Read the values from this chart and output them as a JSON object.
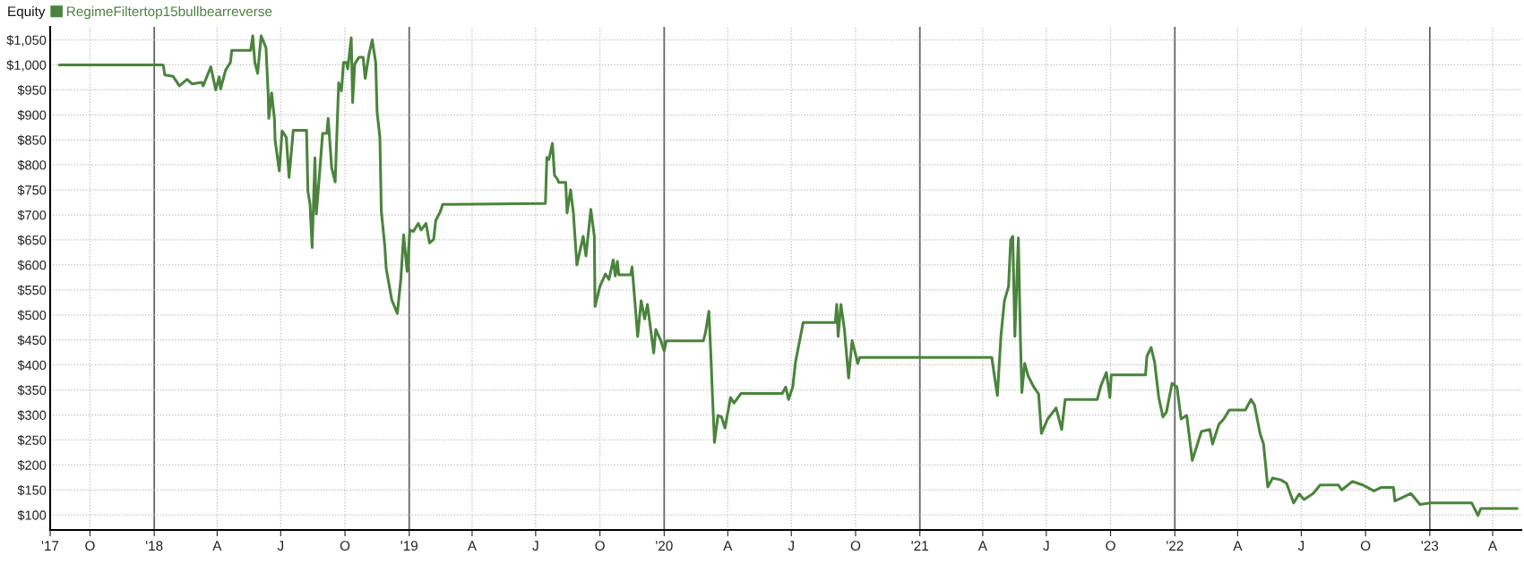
{
  "chart_data": {
    "type": "line",
    "title": "Equity",
    "legend": "top left",
    "grid": true,
    "line_style": "solid",
    "marker": "none",
    "xlim": [
      "2017-08-05",
      "2023-05-12"
    ],
    "xticks": [
      {
        "value": "2017-08-05",
        "label": "'17"
      },
      {
        "value": "2017-10-01",
        "label": "O"
      },
      {
        "value": "2018-01-01",
        "label": "'18"
      },
      {
        "value": "2018-04-01",
        "label": "A"
      },
      {
        "value": "2018-07-01",
        "label": "J"
      },
      {
        "value": "2018-10-01",
        "label": "O"
      },
      {
        "value": "2019-01-01",
        "label": "'19"
      },
      {
        "value": "2019-04-01",
        "label": "A"
      },
      {
        "value": "2019-07-01",
        "label": "J"
      },
      {
        "value": "2019-10-01",
        "label": "O"
      },
      {
        "value": "2020-01-01",
        "label": "'20"
      },
      {
        "value": "2020-04-01",
        "label": "A"
      },
      {
        "value": "2020-07-01",
        "label": "J"
      },
      {
        "value": "2020-10-01",
        "label": "O"
      },
      {
        "value": "2021-01-01",
        "label": "'21"
      },
      {
        "value": "2021-04-01",
        "label": "A"
      },
      {
        "value": "2021-07-01",
        "label": "J"
      },
      {
        "value": "2021-10-01",
        "label": "O"
      },
      {
        "value": "2022-01-01",
        "label": "'22"
      },
      {
        "value": "2022-04-01",
        "label": "A"
      },
      {
        "value": "2022-07-01",
        "label": "J"
      },
      {
        "value": "2022-10-01",
        "label": "O"
      },
      {
        "value": "2023-01-01",
        "label": "'23"
      },
      {
        "value": "2023-04-01",
        "label": "A"
      }
    ],
    "ylim": [
      70,
      1076
    ],
    "yticks": [
      {
        "value": 100,
        "label": "$100"
      },
      {
        "value": 150,
        "label": "$150"
      },
      {
        "value": 200,
        "label": "$200"
      },
      {
        "value": 250,
        "label": "$250"
      },
      {
        "value": 300,
        "label": "$300"
      },
      {
        "value": 350,
        "label": "$350"
      },
      {
        "value": 400,
        "label": "$400"
      },
      {
        "value": 450,
        "label": "$450"
      },
      {
        "value": 500,
        "label": "$500"
      },
      {
        "value": 550,
        "label": "$550"
      },
      {
        "value": 600,
        "label": "$600"
      },
      {
        "value": 650,
        "label": "$650"
      },
      {
        "value": 700,
        "label": "$700"
      },
      {
        "value": 750,
        "label": "$750"
      },
      {
        "value": 800,
        "label": "$800"
      },
      {
        "value": 850,
        "label": "$850"
      },
      {
        "value": 900,
        "label": "$900"
      },
      {
        "value": 950,
        "label": "$950"
      },
      {
        "value": 1000,
        "label": "$1,000"
      },
      {
        "value": 1050,
        "label": "$1,050"
      }
    ],
    "series": [
      {
        "name": "RegimeFiltertop15bullbearreverse",
        "color": "#4a843c",
        "x": [
          "2017-08-18",
          "2018-01-13",
          "2018-01-14",
          "2018-01-16",
          "2018-01-28",
          "2018-02-06",
          "2018-02-17",
          "2018-02-24",
          "2018-03-10",
          "2018-03-12",
          "2018-03-23",
          "2018-03-30",
          "2018-04-04",
          "2018-04-06",
          "2018-04-13",
          "2018-04-20",
          "2018-04-22",
          "2018-05-19",
          "2018-05-22",
          "2018-05-25",
          "2018-05-29",
          "2018-06-03",
          "2018-06-10",
          "2018-06-13",
          "2018-06-14",
          "2018-06-18",
          "2018-06-22",
          "2018-06-23",
          "2018-06-29",
          "2018-07-03",
          "2018-07-09",
          "2018-07-13",
          "2018-07-19",
          "2018-08-07",
          "2018-08-09",
          "2018-08-12",
          "2018-08-15",
          "2018-08-19",
          "2018-08-21",
          "2018-08-24",
          "2018-08-30",
          "2018-09-05",
          "2018-09-07",
          "2018-09-12",
          "2018-09-17",
          "2018-09-22",
          "2018-09-26",
          "2018-09-29",
          "2018-10-03",
          "2018-10-05",
          "2018-10-10",
          "2018-10-12",
          "2018-10-15",
          "2018-10-21",
          "2018-10-27",
          "2018-10-30",
          "2018-11-04",
          "2018-11-09",
          "2018-11-14",
          "2018-11-16",
          "2018-11-20",
          "2018-11-22",
          "2018-11-27",
          "2018-11-29",
          "2018-12-07",
          "2018-12-15",
          "2018-12-20",
          "2018-12-24",
          "2018-12-29",
          "2019-01-02",
          "2019-01-07",
          "2019-01-14",
          "2019-01-18",
          "2019-01-25",
          "2019-01-30",
          "2019-02-05",
          "2019-02-08",
          "2019-02-14",
          "2019-02-18",
          "2019-07-15",
          "2019-07-17",
          "2019-07-20",
          "2019-07-25",
          "2019-07-28",
          "2019-08-01",
          "2019-08-03",
          "2019-08-13",
          "2019-08-15",
          "2019-08-20",
          "2019-08-24",
          "2019-08-29",
          "2019-09-07",
          "2019-09-11",
          "2019-09-18",
          "2019-09-23",
          "2019-09-24",
          "2019-10-01",
          "2019-10-09",
          "2019-10-14",
          "2019-10-20",
          "2019-10-23",
          "2019-10-26",
          "2019-10-28",
          "2019-11-14",
          "2019-11-16",
          "2019-11-20",
          "2019-11-24",
          "2019-11-29",
          "2019-12-04",
          "2019-12-08",
          "2019-12-12",
          "2019-12-17",
          "2019-12-20",
          "2019-12-27",
          "2020-01-01",
          "2020-01-04",
          "2020-02-26",
          "2020-02-29",
          "2020-03-05",
          "2020-03-08",
          "2020-03-10",
          "2020-03-13",
          "2020-03-18",
          "2020-03-23",
          "2020-03-28",
          "2020-04-05",
          "2020-04-10",
          "2020-04-20",
          "2020-06-18",
          "2020-06-23",
          "2020-06-27",
          "2020-07-03",
          "2020-07-07",
          "2020-07-13",
          "2020-07-18",
          "2020-09-02",
          "2020-09-04",
          "2020-09-06",
          "2020-09-10",
          "2020-09-15",
          "2020-09-21",
          "2020-09-26",
          "2020-10-01",
          "2020-10-04",
          "2020-10-07",
          "2021-04-14",
          "2021-04-17",
          "2021-04-22",
          "2021-04-27",
          "2021-05-02",
          "2021-05-08",
          "2021-05-11",
          "2021-05-14",
          "2021-05-17",
          "2021-05-22",
          "2021-05-25",
          "2021-05-27",
          "2021-05-31",
          "2021-06-05",
          "2021-06-13",
          "2021-06-20",
          "2021-06-24",
          "2021-07-03",
          "2021-07-15",
          "2021-07-23",
          "2021-07-28",
          "2021-09-12",
          "2021-09-17",
          "2021-09-25",
          "2021-09-30",
          "2021-10-02",
          "2021-11-20",
          "2021-11-22",
          "2021-11-28",
          "2021-12-03",
          "2021-12-09",
          "2021-12-15",
          "2021-12-20",
          "2021-12-28",
          "2022-01-04",
          "2022-01-10",
          "2022-01-18",
          "2022-01-26",
          "2022-02-08",
          "2022-02-20",
          "2022-02-24",
          "2022-03-05",
          "2022-03-12",
          "2022-03-20",
          "2022-04-12",
          "2022-04-20",
          "2022-04-25",
          "2022-05-03",
          "2022-05-08",
          "2022-05-14",
          "2022-05-21",
          "2022-06-02",
          "2022-06-10",
          "2022-06-20",
          "2022-06-28",
          "2022-07-05",
          "2022-07-18",
          "2022-07-28",
          "2022-08-23",
          "2022-08-28",
          "2022-09-12",
          "2022-09-27",
          "2022-10-13",
          "2022-10-23",
          "2022-11-10",
          "2022-11-12",
          "2022-11-23",
          "2022-12-05",
          "2022-12-18",
          "2023-01-02",
          "2023-03-02",
          "2023-03-11",
          "2023-03-15",
          "2023-05-06"
        ],
        "values": [
          1000,
          1000,
          999,
          980,
          977,
          958,
          971,
          962,
          965,
          958,
          996,
          950,
          976,
          952,
          989,
          1005,
          1029,
          1029,
          1058,
          1005,
          983,
          1058,
          1034,
          944,
          893,
          944,
          893,
          849,
          788,
          868,
          855,
          775,
          869,
          869,
          747,
          721,
          635,
          814,
          702,
          753,
          863,
          863,
          893,
          794,
          766,
          964,
          948,
          1005,
          1005,
          992,
          1054,
          925,
          1002,
          1015,
          1015,
          973,
          1018,
          1050,
          1005,
          906,
          855,
          708,
          638,
          593,
          530,
          503,
          572,
          660,
          587,
          670,
          667,
          683,
          670,
          683,
          644,
          651,
          689,
          705,
          721,
          723,
          815,
          811,
          843,
          779,
          772,
          765,
          765,
          704,
          750,
          704,
          600,
          657,
          618,
          711,
          657,
          517,
          557,
          582,
          571,
          610,
          578,
          607,
          580,
          580,
          596,
          528,
          457,
          528,
          492,
          521,
          478,
          424,
          471,
          449,
          428,
          448,
          448,
          464,
          507,
          414,
          342,
          245,
          299,
          296,
          274,
          335,
          324,
          343,
          343,
          356,
          331,
          356,
          406,
          449,
          485,
          485,
          521,
          457,
          521,
          471,
          374,
          449,
          421,
          403,
          415,
          415,
          385,
          339,
          457,
          528,
          557,
          650,
          657,
          457,
          654,
          449,
          345,
          403,
          378,
          356,
          342,
          263,
          292,
          314,
          271,
          331,
          331,
          358,
          385,
          335,
          380,
          380,
          417,
          435,
          406,
          335,
          296,
          306,
          363,
          356,
          292,
          299,
          209,
          267,
          271,
          242,
          281,
          292,
          310,
          310,
          331,
          320,
          263,
          242,
          156,
          174,
          170,
          163,
          124,
          142,
          131,
          143,
          160,
          160,
          150,
          167,
          160,
          148,
          155,
          155,
          128,
          135,
          143,
          121,
          124,
          124,
          99,
          113,
          113
        ]
      }
    ]
  }
}
